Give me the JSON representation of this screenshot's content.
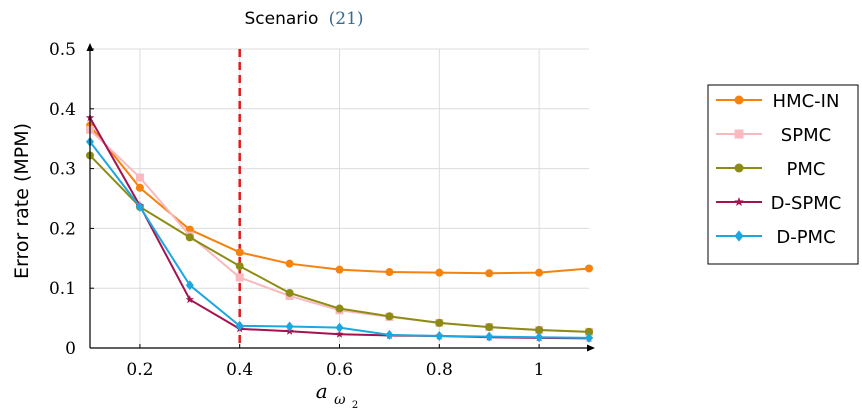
{
  "chart_data": {
    "type": "line",
    "title_text": "Scenario",
    "title_ref": "(21)",
    "ylabel": "Error rate (MPM)",
    "xlabel_base": "a",
    "xlabel_sub": "ω",
    "xlabel_subsub": "2",
    "xlim": [
      0.1,
      1.1
    ],
    "ylim": [
      0,
      0.5
    ],
    "x_ticks": [
      0.2,
      0.4,
      0.6,
      0.8,
      1.0
    ],
    "x_tick_labels": [
      "0.2",
      "0.4",
      "0.6",
      "0.8",
      "1"
    ],
    "y_ticks": [
      0,
      0.1,
      0.2,
      0.3,
      0.4,
      0.5
    ],
    "y_tick_labels": [
      "0",
      "0.1",
      "0.2",
      "0.3",
      "0.4",
      "0.5"
    ],
    "grid": true,
    "vline": {
      "x": 0.4,
      "color": "#e31a1c",
      "style": "dashed"
    },
    "legend_position": "right",
    "x": [
      0.1,
      0.2,
      0.3,
      0.4,
      0.5,
      0.6,
      0.7,
      0.8,
      0.9,
      1.0,
      1.1
    ],
    "series": [
      {
        "name": "HMC-IN",
        "color": "#f5820d",
        "marker": "circle",
        "values": [
          0.372,
          0.268,
          0.198,
          0.16,
          0.141,
          0.131,
          0.127,
          0.126,
          0.125,
          0.126,
          0.133
        ]
      },
      {
        "name": "SPMC",
        "color": "#f8b9bf",
        "marker": "square",
        "values": [
          0.365,
          0.285,
          0.188,
          0.118,
          0.087,
          0.063,
          0.052,
          0.042,
          0.035,
          0.03,
          0.027
        ]
      },
      {
        "name": "PMC",
        "color": "#8c8c14",
        "marker": "circle",
        "values": [
          0.322,
          0.236,
          0.185,
          0.137,
          0.092,
          0.066,
          0.053,
          0.042,
          0.035,
          0.03,
          0.027
        ]
      },
      {
        "name": "D-SPMC",
        "color": "#a3134f",
        "marker": "star",
        "values": [
          0.385,
          0.238,
          0.081,
          0.032,
          0.028,
          0.023,
          0.021,
          0.02,
          0.018,
          0.017,
          0.016
        ]
      },
      {
        "name": "D-PMC",
        "color": "#1ba7e0",
        "marker": "diamond",
        "values": [
          0.345,
          0.236,
          0.105,
          0.037,
          0.036,
          0.034,
          0.022,
          0.02,
          0.019,
          0.018,
          0.017
        ]
      }
    ]
  }
}
